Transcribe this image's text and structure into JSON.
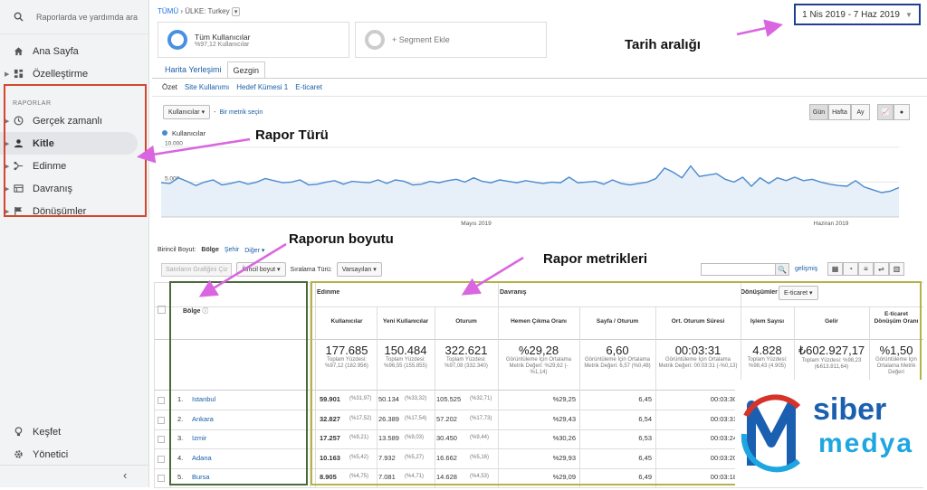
{
  "sidebar": {
    "search_placeholder": "Raporlarda ve yardımda ara",
    "home": "Ana Sayfa",
    "customize": "Özelleştirme",
    "reports_header": "RAPORLAR",
    "items": [
      {
        "label": "Gerçek zamanlı",
        "icon": "clock-icon"
      },
      {
        "label": "Kitle",
        "icon": "person-icon"
      },
      {
        "label": "Edinme",
        "icon": "acquisition-icon"
      },
      {
        "label": "Davranış",
        "icon": "behavior-icon"
      },
      {
        "label": "Dönüşümler",
        "icon": "flag-icon"
      }
    ],
    "discover": "Keşfet",
    "admin": "Yönetici"
  },
  "header": {
    "breadcrumb_all": "TÜMÜ",
    "breadcrumb_sep": "›",
    "breadcrumb_country": "ÜLKE: Turkey",
    "date_range": "1 Nis 2019 - 7 Haz 2019",
    "segment1_title": "Tüm Kullanıcılar",
    "segment1_sub": "%97,12 Kullanıcılar",
    "segment2": "+ Segment Ekle"
  },
  "tabs": [
    "Harita Yerleşimi",
    "Gezgin"
  ],
  "subtabs": [
    "Özet",
    "Site Kullanımı",
    "Hedef Kümesi 1",
    "E-ticaret"
  ],
  "chart_controls": {
    "metric": "Kullanıcılar",
    "vs": "-",
    "pick_metric": "Bir metrik seçin",
    "day": "Gün",
    "week": "Hafta",
    "month": "Ay"
  },
  "chart_data": {
    "type": "area",
    "series_name": "Kullanıcılar",
    "y_ticks": [
      "10.000",
      "5.000"
    ],
    "ylim": [
      0,
      11000
    ],
    "x_labels": [
      "Mayıs 2019",
      "Haziran 2019"
    ],
    "values": [
      4900,
      4800,
      5600,
      5100,
      4500,
      5000,
      5300,
      4600,
      4800,
      5100,
      4700,
      5000,
      5500,
      5200,
      4900,
      5000,
      5300,
      4600,
      4700,
      5000,
      5200,
      4700,
      5100,
      5000,
      4900,
      5300,
      4800,
      5300,
      5100,
      4600,
      4700,
      5100,
      4900,
      5200,
      5400,
      5000,
      5600,
      5100,
      4900,
      5300,
      5100,
      4900,
      5200,
      5000,
      4800,
      5000,
      4900,
      5700,
      4900,
      5000,
      5100,
      4700,
      5300,
      4800,
      4600,
      4800,
      5000,
      5500,
      7000,
      6400,
      5600,
      7300,
      5800,
      6000,
      6200,
      5400,
      5000,
      5700,
      4400,
      5600,
      4800,
      5600,
      5200,
      5700,
      5200,
      5400,
      5000,
      4700,
      4500,
      4400,
      5200,
      4300,
      3900,
      3500,
      3700,
      4200
    ]
  },
  "dimension_row": {
    "label": "Birincil Boyut:",
    "active": "Bölge",
    "city": "Şehir",
    "other": "Diğer"
  },
  "table_controls": {
    "plot": "Satırların Grafiğini Çiz",
    "secondary": "İkincil boyut",
    "sort_label": "Sıralama Türü:",
    "sort_value": "Varsayılan",
    "advanced": "gelişmiş"
  },
  "table": {
    "dimension_header": "Bölge",
    "group_acq": "Edinme",
    "group_beh": "Davranış",
    "group_conv": "Dönüşümler",
    "conv_select": "E-ticaret",
    "columns": [
      "Kullanıcılar",
      "Yeni Kullanıcılar",
      "Oturum",
      "Hemen Çıkma Oranı",
      "Sayfa / Oturum",
      "Ort. Oturum Süresi",
      "İşlem Sayısı",
      "Gelir",
      "E-ticaret Dönüşüm Oranı"
    ],
    "totals": [
      {
        "value": "177.685",
        "sub": "Toplam Yüzdesi: %97,12 (182.956)"
      },
      {
        "value": "150.484",
        "sub": "Toplam Yüzdesi: %96,55 (155.855)"
      },
      {
        "value": "322.621",
        "sub": "Toplam Yüzdesi: %97,08 (332.340)"
      },
      {
        "value": "%29,28",
        "sub": "Görüntüleme İçin Ortalama Metrik Değeri: %29,62 (-%1,14)"
      },
      {
        "value": "6,60",
        "sub": "Görüntüleme İçin Ortalama Metrik Değeri: 6,57 (%0,48)"
      },
      {
        "value": "00:03:31",
        "sub": "Görüntüleme İçin Ortalama Metrik Değeri: 00:03:31 (-%0,13)"
      },
      {
        "value": "4.828",
        "sub": "Toplam Yüzdesi: %98,43 (4.905)"
      },
      {
        "value": "₺602.927,17",
        "sub": "Toplam Yüzdesi: %98,23 (₺613.811,64)"
      },
      {
        "value": "%1,50",
        "sub": "Görüntüleme İçin Ortalama Metrik Değeri"
      }
    ],
    "rows": [
      {
        "idx": "1.",
        "region": "Istanbul",
        "users": "59.901",
        "users_pct": "(%31,97)",
        "new": "50.134",
        "new_pct": "(%33,32)",
        "sess": "105.525",
        "sess_pct": "(%32,71)",
        "bounce": "%29,25",
        "pps": "6,45",
        "dur": "00:03:30"
      },
      {
        "idx": "2.",
        "region": "Ankara",
        "users": "32.827",
        "users_pct": "(%17,52)",
        "new": "26.389",
        "new_pct": "(%17,54)",
        "sess": "57.202",
        "sess_pct": "(%17,73)",
        "bounce": "%29,43",
        "pps": "6,54",
        "dur": "00:03:31"
      },
      {
        "idx": "3.",
        "region": "Izmir",
        "users": "17.257",
        "users_pct": "(%9,21)",
        "new": "13.589",
        "new_pct": "(%9,03)",
        "sess": "30.450",
        "sess_pct": "(%9,44)",
        "bounce": "%30,26",
        "pps": "6,53",
        "dur": "00:03:24"
      },
      {
        "idx": "4.",
        "region": "Adana",
        "users": "10.163",
        "users_pct": "(%5,42)",
        "new": "7.932",
        "new_pct": "(%5,27)",
        "sess": "16.662",
        "sess_pct": "(%5,16)",
        "bounce": "%29,93",
        "pps": "6,45",
        "dur": "00:03:20"
      },
      {
        "idx": "5.",
        "region": "Bursa",
        "users": "8.905",
        "users_pct": "(%4,75)",
        "new": "7.081",
        "new_pct": "(%4,71)",
        "sess": "14.628",
        "sess_pct": "(%4,53)",
        "bounce": "%29,09",
        "pps": "6,49",
        "dur": "00:03:18"
      }
    ]
  },
  "annotations": {
    "date": "Tarih aralığı",
    "report_type": "Rapor Türü",
    "dimension": "Raporun boyutu",
    "metrics": "Rapor metrikleri"
  },
  "logo": {
    "top": "siber",
    "bottom": "medya"
  },
  "colors": {
    "accent": "#1a73e8",
    "annotation_arrow": "#d966e0",
    "red_box": "#d4472f",
    "green_box": "#4b6a3a",
    "yellow_box": "#b6b24a",
    "chart_line": "#4a8ad0"
  }
}
